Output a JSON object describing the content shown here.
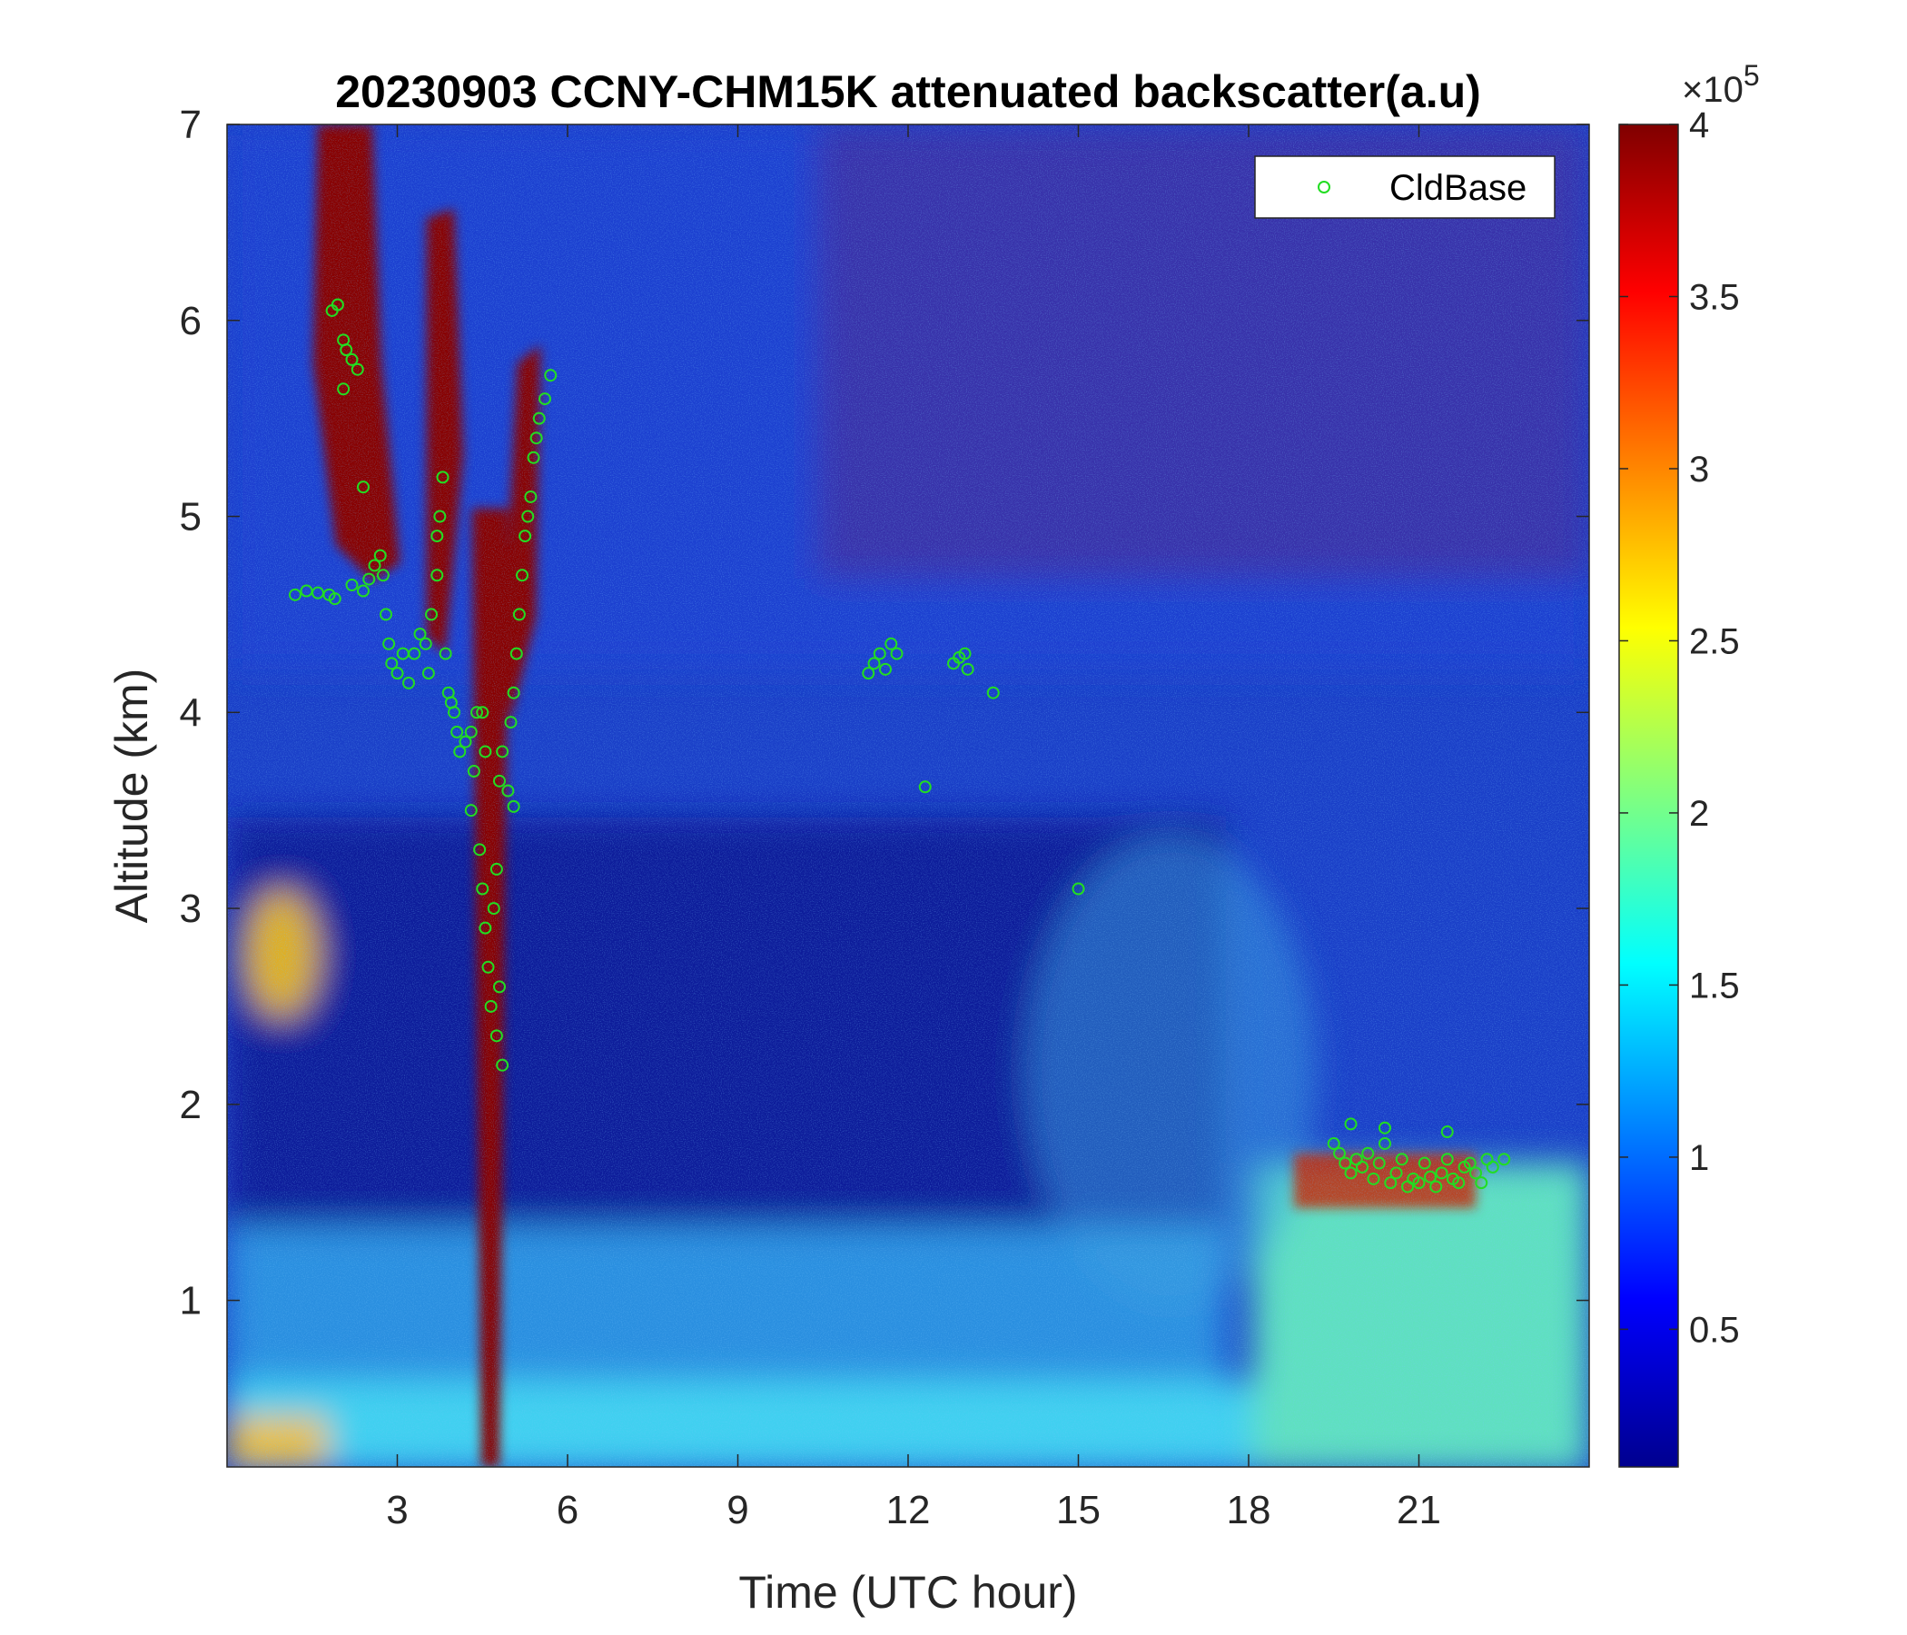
{
  "chart_data": {
    "type": "heatmap",
    "title": "20230903 CCNY-CHM15K attenuated backscatter(a.u)",
    "xlabel": "Time (UTC hour)",
    "ylabel": "Altitude (km)",
    "xlim": [
      0,
      24
    ],
    "ylim": [
      0.15,
      7
    ],
    "x_ticks": [
      3,
      6,
      9,
      12,
      15,
      18,
      21
    ],
    "y_ticks": [
      1,
      2,
      3,
      4,
      5,
      6,
      7
    ],
    "colorbar": {
      "colormap": "jet",
      "range": [
        0.1,
        4
      ],
      "ticks": [
        0.5,
        1,
        1.5,
        2,
        2.5,
        3,
        3.5,
        4
      ],
      "exponent_base": "×10",
      "exponent_power": "5"
    },
    "grid": false,
    "legend_position": "top-right",
    "series": [
      {
        "name": "CldBase",
        "type": "scatter",
        "marker": "circle",
        "color": "#22dd22",
        "points": [
          [
            1.2,
            4.6
          ],
          [
            1.4,
            4.62
          ],
          [
            1.6,
            4.61
          ],
          [
            1.8,
            4.6
          ],
          [
            1.9,
            4.58
          ],
          [
            1.85,
            6.05
          ],
          [
            1.95,
            6.08
          ],
          [
            2.05,
            5.9
          ],
          [
            2.1,
            5.85
          ],
          [
            2.2,
            5.8
          ],
          [
            2.3,
            5.75
          ],
          [
            2.05,
            5.65
          ],
          [
            2.2,
            4.65
          ],
          [
            2.4,
            4.62
          ],
          [
            2.5,
            4.68
          ],
          [
            2.4,
            5.15
          ],
          [
            2.6,
            4.75
          ],
          [
            2.7,
            4.8
          ],
          [
            2.75,
            4.7
          ],
          [
            2.8,
            4.5
          ],
          [
            2.85,
            4.35
          ],
          [
            2.9,
            4.25
          ],
          [
            3.0,
            4.2
          ],
          [
            3.1,
            4.3
          ],
          [
            3.2,
            4.15
          ],
          [
            3.3,
            4.3
          ],
          [
            3.4,
            4.4
          ],
          [
            3.5,
            4.35
          ],
          [
            3.55,
            4.2
          ],
          [
            3.6,
            4.5
          ],
          [
            3.7,
            4.7
          ],
          [
            3.75,
            5.0
          ],
          [
            3.8,
            5.2
          ],
          [
            3.7,
            4.9
          ],
          [
            3.85,
            4.3
          ],
          [
            3.9,
            4.1
          ],
          [
            4.0,
            4.0
          ],
          [
            4.05,
            3.9
          ],
          [
            4.1,
            3.8
          ],
          [
            4.2,
            3.85
          ],
          [
            4.3,
            3.9
          ],
          [
            4.35,
            3.7
          ],
          [
            4.4,
            4.0
          ],
          [
            4.3,
            3.5
          ],
          [
            4.45,
            3.3
          ],
          [
            4.5,
            3.1
          ],
          [
            4.55,
            2.9
          ],
          [
            4.6,
            2.7
          ],
          [
            4.65,
            2.5
          ],
          [
            4.7,
            3.0
          ],
          [
            4.75,
            3.2
          ],
          [
            4.8,
            2.6
          ],
          [
            4.75,
            2.35
          ],
          [
            4.85,
            2.2
          ],
          [
            4.8,
            3.65
          ],
          [
            4.85,
            3.8
          ],
          [
            4.95,
            3.6
          ],
          [
            5.0,
            3.95
          ],
          [
            5.05,
            4.1
          ],
          [
            5.1,
            4.3
          ],
          [
            5.15,
            4.5
          ],
          [
            5.2,
            4.7
          ],
          [
            5.25,
            4.9
          ],
          [
            5.3,
            5.0
          ],
          [
            5.35,
            5.1
          ],
          [
            5.4,
            5.3
          ],
          [
            5.45,
            5.4
          ],
          [
            5.5,
            5.5
          ],
          [
            5.6,
            5.6
          ],
          [
            5.7,
            5.72
          ],
          [
            5.05,
            3.52
          ],
          [
            4.55,
            3.8
          ],
          [
            4.5,
            4.0
          ],
          [
            3.95,
            4.05
          ],
          [
            11.3,
            4.2
          ],
          [
            11.4,
            4.25
          ],
          [
            11.5,
            4.3
          ],
          [
            11.6,
            4.22
          ],
          [
            11.7,
            4.35
          ],
          [
            11.8,
            4.3
          ],
          [
            12.3,
            3.62
          ],
          [
            12.8,
            4.25
          ],
          [
            12.9,
            4.28
          ],
          [
            13.0,
            4.3
          ],
          [
            13.05,
            4.22
          ],
          [
            13.5,
            4.1
          ],
          [
            15.0,
            3.1
          ],
          [
            19.5,
            1.8
          ],
          [
            19.6,
            1.75
          ],
          [
            19.7,
            1.7
          ],
          [
            19.8,
            1.65
          ],
          [
            19.9,
            1.72
          ],
          [
            20.0,
            1.68
          ],
          [
            20.1,
            1.75
          ],
          [
            20.2,
            1.62
          ],
          [
            20.3,
            1.7
          ],
          [
            20.4,
            1.8
          ],
          [
            20.5,
            1.6
          ],
          [
            20.6,
            1.65
          ],
          [
            20.7,
            1.72
          ],
          [
            20.8,
            1.58
          ],
          [
            20.9,
            1.62
          ],
          [
            21.0,
            1.6
          ],
          [
            21.1,
            1.7
          ],
          [
            21.2,
            1.63
          ],
          [
            21.3,
            1.58
          ],
          [
            21.4,
            1.65
          ],
          [
            21.5,
            1.72
          ],
          [
            21.6,
            1.62
          ],
          [
            21.7,
            1.6
          ],
          [
            21.8,
            1.68
          ],
          [
            21.9,
            1.7
          ],
          [
            22.0,
            1.65
          ],
          [
            22.1,
            1.6
          ],
          [
            22.2,
            1.72
          ],
          [
            22.3,
            1.68
          ],
          [
            22.5,
            1.72
          ],
          [
            21.5,
            1.86
          ],
          [
            20.4,
            1.88
          ],
          [
            19.8,
            1.9
          ]
        ]
      }
    ]
  }
}
